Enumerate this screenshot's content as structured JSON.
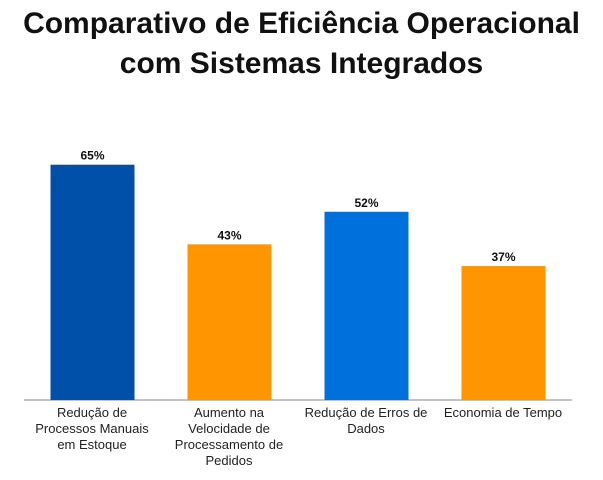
{
  "title_lines": [
    "Comparativo de Eficiência Operacional",
    "com Sistemas Integrados"
  ],
  "chart_data": {
    "type": "bar",
    "title": "Comparativo de Eficiência Operacional com Sistemas Integrados",
    "categories": [
      "Redução de Processos Manuais em Estoque",
      "Aumento na Velocidade de Processamento de Pedidos",
      "Redução de Erros de Dados",
      "Economia de Tempo"
    ],
    "values": [
      65,
      43,
      52,
      37
    ],
    "value_labels": [
      "65%",
      "43%",
      "52%",
      "37%"
    ],
    "colors": [
      "#0050aa",
      "#ff9500",
      "#0070dd",
      "#ff9500"
    ],
    "unit": "%",
    "xlabel": "",
    "ylabel": "",
    "ylim": [
      0,
      70
    ],
    "grid": false,
    "legend": "none"
  }
}
